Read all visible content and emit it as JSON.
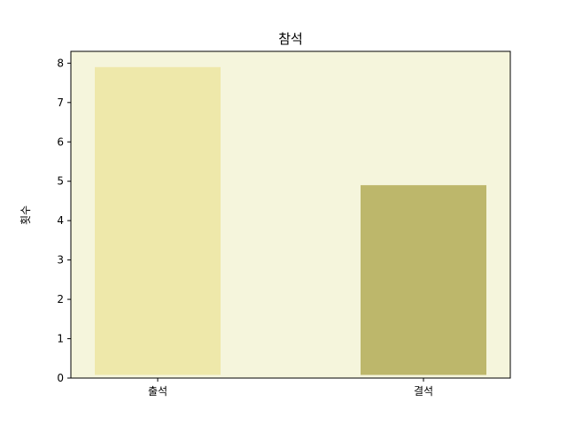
{
  "chart_data": {
    "type": "bar",
    "title": "참석",
    "xlabel": "",
    "ylabel": "횟수",
    "categories": [
      "출석",
      "결석"
    ],
    "series": [
      {
        "values": [
          7.9,
          4.9
        ],
        "bottoms": [
          0.08,
          0.08
        ]
      }
    ],
    "bar_colors": [
      "#eee8aa",
      "#bdb76b"
    ],
    "ylim": [
      0,
      8.3
    ],
    "yticks": [
      0,
      1,
      2,
      3,
      4,
      5,
      6,
      7,
      8
    ],
    "background_color": "#f5f5dc",
    "grid": false
  }
}
